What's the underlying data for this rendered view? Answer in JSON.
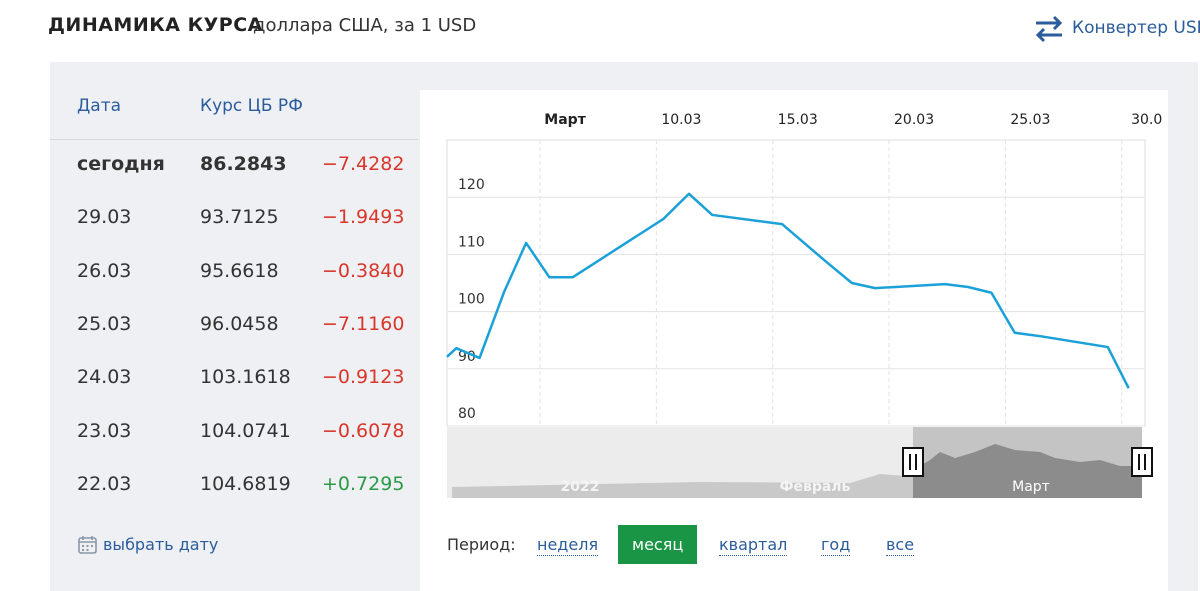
{
  "header": {
    "title": "ДИНАМИКА КУРСА",
    "subtitle": "доллара США, за 1 USD",
    "converter": "Конвертер USD"
  },
  "table": {
    "columns": [
      "Дата",
      "Курс ЦБ РФ"
    ],
    "rows": [
      [
        "сегодня",
        "86.2843",
        "−7.4282"
      ],
      [
        "29.03",
        "93.7125",
        "−1.9493"
      ],
      [
        "26.03",
        "95.6618",
        "−0.3840"
      ],
      [
        "25.03",
        "96.0458",
        "−7.1160"
      ],
      [
        "24.03",
        "103.1618",
        "−0.9123"
      ],
      [
        "23.03",
        "104.0741",
        "−0.6078"
      ],
      [
        "22.03",
        "104.6819",
        "+0.7295"
      ]
    ]
  },
  "pick_date": "выбрать дату",
  "chart_data": {
    "type": "line",
    "x": [
      1,
      1.4,
      2.4,
      3.45,
      4.4,
      5.4,
      6.4,
      10.3,
      11.4,
      12.4,
      15.4,
      17.3,
      18.4,
      19.4,
      22.4,
      23.4,
      24.4,
      25.4,
      26.5,
      29.4,
      30.3
    ],
    "series": [
      {
        "color": "#1ba1d8",
        "values": [
          92.1,
          93.6,
          91.9,
          103.4,
          112.0,
          106.0,
          106.0,
          116.2,
          120.6,
          116.9,
          115.3,
          108.7,
          105.0,
          104.1,
          104.8,
          104.3,
          103.3,
          96.3,
          95.7,
          93.8,
          86.6
        ]
      }
    ],
    "xlim": [
      1,
      31
    ],
    "xticks": [
      {
        "value": 5,
        "label": "Март"
      },
      {
        "value": 10,
        "label": "10.03"
      },
      {
        "value": 15,
        "label": "15.03"
      },
      {
        "value": 20,
        "label": "20.03"
      },
      {
        "value": 25,
        "label": "25.03"
      },
      {
        "value": 30,
        "label": "30.0"
      }
    ],
    "ylim": [
      80,
      130
    ],
    "yticks": [
      80,
      90,
      100,
      110,
      120
    ],
    "grid": true
  },
  "navigator": {
    "labels": [
      "2022",
      "Февраль",
      "Март"
    ]
  },
  "period": {
    "label": "Период:",
    "options": [
      "неделя",
      "месяц",
      "квартал",
      "год",
      "все"
    ],
    "active": 1
  }
}
